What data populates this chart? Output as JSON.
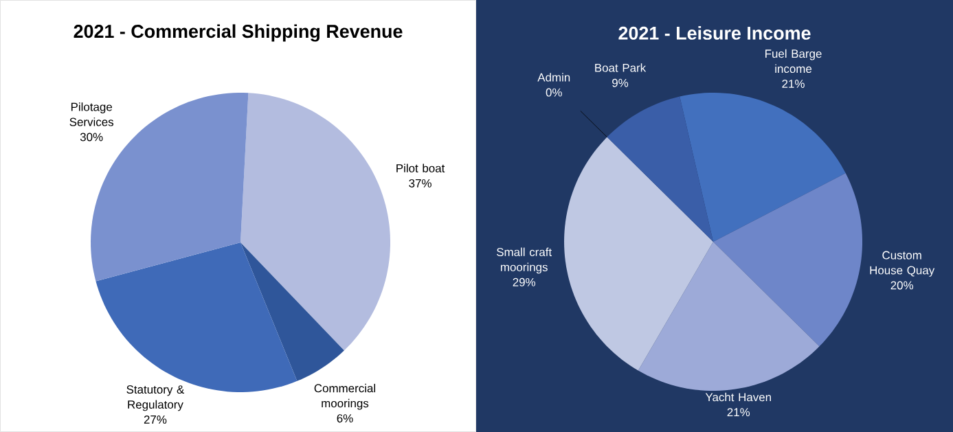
{
  "chart_data": [
    {
      "type": "pie",
      "title": "2021 - Commercial Shipping Revenue",
      "categories": [
        "Pilot boat",
        "Commercial moorings",
        "Statutory & Regulatory",
        "Pilotage Services"
      ],
      "values": [
        37,
        6,
        27,
        30
      ],
      "value_labels": [
        "37%",
        "6%",
        "27%",
        "30%"
      ],
      "colors": [
        "#b3bcdf",
        "#2f569a",
        "#3f6ab8",
        "#7a91cf"
      ]
    },
    {
      "type": "pie",
      "title": "2021 - Leisure Income",
      "categories": [
        "Fuel Barge income",
        "Custom House Quay",
        "Yacht Haven",
        "Small craft moorings",
        "Admin",
        "Boat Park"
      ],
      "values": [
        21,
        20,
        21,
        29,
        0,
        9
      ],
      "value_labels": [
        "21%",
        "20%",
        "21%",
        "29%",
        "0%",
        "9%"
      ],
      "colors": [
        "#4270be",
        "#6e86c9",
        "#9daad8",
        "#bfc8e3",
        "#2f4f8f",
        "#3a5ea8"
      ]
    }
  ]
}
